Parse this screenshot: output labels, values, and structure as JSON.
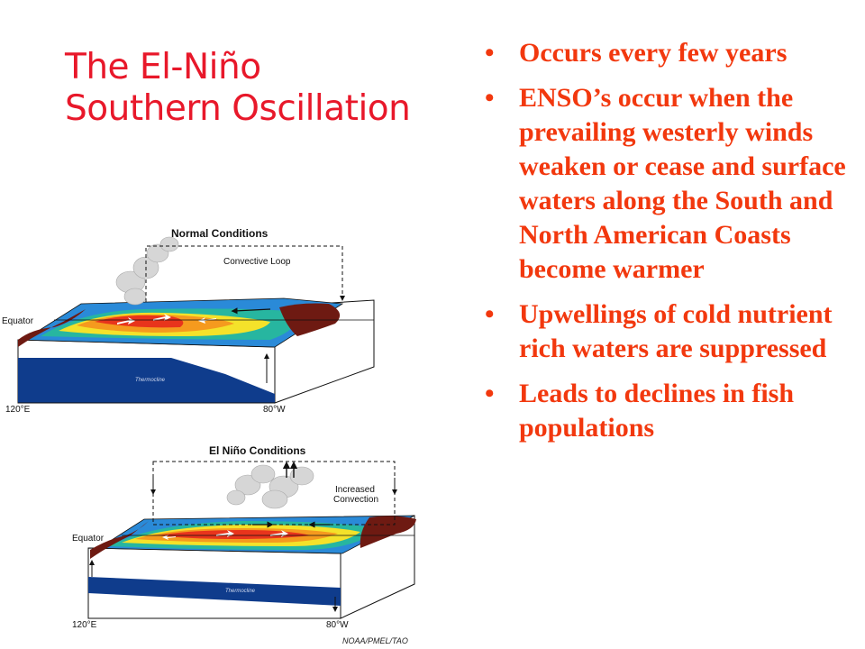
{
  "slide": {
    "title_lines": [
      "The El-Niño",
      "Southern Oscillation"
    ],
    "bullets": [
      "Occurs every few years",
      "ENSO’s occur when the prevailing westerly winds weaken or cease and surface waters along the South and North American Coasts become warmer",
      "Upwellings of cold nutrient rich waters are suppressed",
      "Leads to declines in fish populations"
    ]
  },
  "diagrams": {
    "normal": {
      "heading": "Normal Conditions",
      "loop_label": "Convective Loop",
      "equator_label": "Equator",
      "lon_west": "120°E",
      "lon_east": "80°W",
      "thermocline_label": "Thermocline"
    },
    "el_nino": {
      "heading": "El Niño Conditions",
      "convection_label_lines": [
        "Increased",
        "Convection"
      ],
      "equator_label": "Equator",
      "lon_west": "120°E",
      "lon_east": "80°W",
      "thermocline_label": "Thermocline"
    }
  },
  "credit": "NOAA/PMEL/TAO",
  "colors": {
    "title": "#e8182a",
    "bullet_text": "#f2380e",
    "ocean_blue": "#0f3c8c",
    "warm_red": "#e8341c",
    "land_brown": "#6e1a12"
  }
}
